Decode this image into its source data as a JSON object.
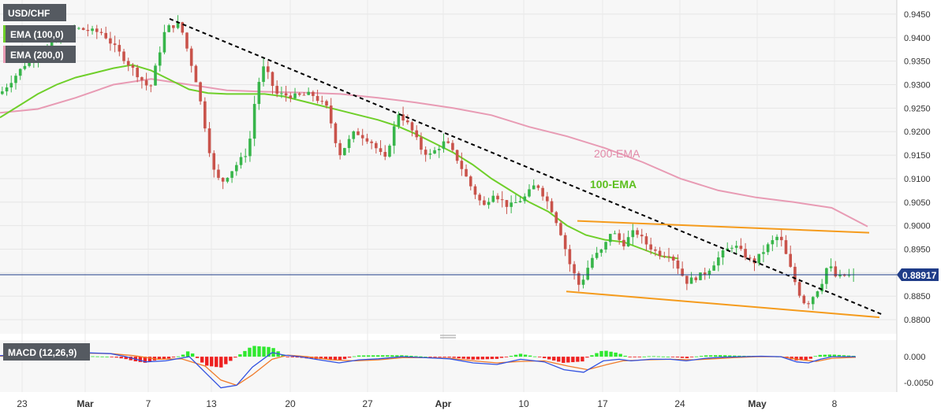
{
  "chart_data": {
    "type": "candlestick",
    "instrument": "USD/CHF",
    "indicators": {
      "ema100": {
        "label": "EMA (100,0)",
        "annotation": "100-EMA",
        "color": "#6fcf2a"
      },
      "ema200": {
        "label": "EMA (200,0)",
        "annotation": "200-EMA",
        "color": "#e89bb4"
      },
      "macd": {
        "label": "MACD (12,26,9)"
      }
    },
    "last_price": "0.88917",
    "price_axis": {
      "ticks": [
        "0.9450",
        "0.9400",
        "0.9350",
        "0.9300",
        "0.9250",
        "0.9200",
        "0.9150",
        "0.9100",
        "0.9050",
        "0.9000",
        "0.8950",
        "0.8900",
        "0.8850",
        "0.8800"
      ],
      "range": [
        0.877,
        0.948
      ]
    },
    "macd_axis": {
      "ticks": [
        "0.000",
        "-0.0050"
      ],
      "range": [
        -0.0068,
        0.0032
      ]
    },
    "date_axis": {
      "ticks": [
        "23",
        "Mar",
        "7",
        "13",
        "20",
        "27",
        "Apr",
        "10",
        "17",
        "24",
        "May",
        "8"
      ],
      "bold": [
        "Mar",
        "Apr",
        "May"
      ]
    },
    "colors": {
      "up": "#37b54a",
      "down": "#c9534b",
      "trendline": "#000000",
      "channel": "#f59b1c",
      "macd_line": "#3050e0",
      "signal_line": "#f07b2a",
      "hist_up": "#2ee82e",
      "hist_down": "#ee2020"
    },
    "ema100": [
      [
        0,
        0.923
      ],
      [
        20,
        0.9255
      ],
      [
        40,
        0.928
      ],
      [
        60,
        0.93
      ],
      [
        80,
        0.9315
      ],
      [
        100,
        0.9325
      ],
      [
        120,
        0.9335
      ],
      [
        140,
        0.9342
      ],
      [
        160,
        0.933
      ],
      [
        180,
        0.931
      ],
      [
        200,
        0.929
      ],
      [
        220,
        0.9282
      ],
      [
        240,
        0.928
      ],
      [
        260,
        0.928
      ],
      [
        280,
        0.928
      ],
      [
        300,
        0.9275
      ],
      [
        320,
        0.9265
      ],
      [
        340,
        0.9255
      ],
      [
        360,
        0.9245
      ],
      [
        380,
        0.9235
      ],
      [
        400,
        0.9225
      ],
      [
        420,
        0.9212
      ],
      [
        440,
        0.9195
      ],
      [
        460,
        0.9175
      ],
      [
        480,
        0.9155
      ],
      [
        500,
        0.913
      ],
      [
        520,
        0.91
      ],
      [
        540,
        0.9075
      ],
      [
        560,
        0.905
      ],
      [
        580,
        0.903
      ],
      [
        600,
        0.9
      ],
      [
        620,
        0.898
      ],
      [
        640,
        0.897
      ],
      [
        660,
        0.8965
      ],
      [
        680,
        0.895
      ],
      [
        700,
        0.8935
      ],
      [
        718,
        0.893
      ]
    ],
    "ema200": [
      [
        0,
        0.924
      ],
      [
        40,
        0.9248
      ],
      [
        80,
        0.9272
      ],
      [
        120,
        0.93
      ],
      [
        160,
        0.9312
      ],
      [
        200,
        0.93
      ],
      [
        240,
        0.9288
      ],
      [
        280,
        0.9285
      ],
      [
        320,
        0.9283
      ],
      [
        360,
        0.928
      ],
      [
        400,
        0.9272
      ],
      [
        440,
        0.9262
      ],
      [
        480,
        0.925
      ],
      [
        520,
        0.9235
      ],
      [
        560,
        0.921
      ],
      [
        600,
        0.919
      ],
      [
        640,
        0.9165
      ],
      [
        680,
        0.9135
      ],
      [
        720,
        0.91
      ],
      [
        760,
        0.9075
      ],
      [
        800,
        0.906
      ],
      [
        840,
        0.905
      ],
      [
        880,
        0.9038
      ],
      [
        918,
        0.8998
      ]
    ],
    "trendline": [
      [
        0,
        0.944
      ],
      [
        918,
        0.881
      ]
    ],
    "channel_upper": [
      [
        0,
        0.901
      ],
      [
        918,
        0.8985
      ]
    ],
    "channel_lower": [
      [
        0,
        0.886
      ],
      [
        918,
        0.8805
      ]
    ],
    "price_path": [
      [
        0,
        0.928
      ],
      [
        35,
        0.935
      ],
      [
        95,
        0.942
      ],
      [
        130,
        0.941
      ],
      [
        160,
        0.935
      ],
      [
        190,
        0.929
      ],
      [
        210,
        0.942
      ],
      [
        228,
        0.943
      ],
      [
        250,
        0.93
      ],
      [
        270,
        0.912
      ],
      [
        280,
        0.909
      ],
      [
        300,
        0.913
      ],
      [
        315,
        0.916
      ],
      [
        325,
        0.929
      ],
      [
        335,
        0.934
      ],
      [
        350,
        0.928
      ],
      [
        375,
        0.9275
      ],
      [
        395,
        0.928
      ],
      [
        415,
        0.925
      ],
      [
        430,
        0.915
      ],
      [
        450,
        0.92
      ],
      [
        470,
        0.918
      ],
      [
        488,
        0.914
      ],
      [
        505,
        0.924
      ],
      [
        520,
        0.921
      ],
      [
        535,
        0.916
      ],
      [
        545,
        0.915
      ],
      [
        565,
        0.918
      ],
      [
        580,
        0.914
      ],
      [
        598,
        0.908
      ],
      [
        613,
        0.904
      ],
      [
        625,
        0.907
      ],
      [
        645,
        0.904
      ],
      [
        665,
        0.906
      ],
      [
        680,
        0.909
      ],
      [
        698,
        0.904
      ],
      [
        710,
        0.899
      ],
      [
        722,
        0.892
      ],
      [
        735,
        0.887
      ],
      [
        750,
        0.893
      ],
      [
        765,
        0.895
      ],
      [
        775,
        0.899
      ],
      [
        790,
        0.896
      ],
      [
        805,
        0.899
      ],
      [
        820,
        0.896
      ],
      [
        835,
        0.894
      ],
      [
        850,
        0.894
      ],
      [
        870,
        0.888
      ],
      [
        895,
        0.89
      ],
      [
        915,
        0.894
      ],
      [
        930,
        0.896
      ],
      [
        955,
        0.892
      ],
      [
        975,
        0.896
      ],
      [
        988,
        0.898
      ],
      [
        1000,
        0.892
      ],
      [
        1012,
        0.886
      ],
      [
        1022,
        0.883
      ],
      [
        1035,
        0.886
      ],
      [
        1042,
        0.888
      ],
      [
        1050,
        0.892
      ],
      [
        1060,
        0.889
      ],
      [
        1075,
        0.8895
      ],
      [
        1085,
        0.8892
      ]
    ],
    "macd_line": [
      [
        0,
        0.0002
      ],
      [
        60,
        0.0006
      ],
      [
        100,
        0.0008
      ],
      [
        140,
        0.0006
      ],
      [
        160,
        0.0
      ],
      [
        185,
        -0.001
      ],
      [
        210,
        -0.0008
      ],
      [
        240,
        0.0
      ],
      [
        260,
        -0.003
      ],
      [
        280,
        -0.006
      ],
      [
        300,
        -0.0055
      ],
      [
        320,
        -0.002
      ],
      [
        345,
        0.0008
      ],
      [
        360,
        0.0003
      ],
      [
        380,
        0.0
      ],
      [
        400,
        -0.0005
      ],
      [
        430,
        -0.0012
      ],
      [
        455,
        -0.0006
      ],
      [
        480,
        -0.0004
      ],
      [
        510,
        0.0
      ],
      [
        540,
        -0.0002
      ],
      [
        570,
        -0.0004
      ],
      [
        600,
        -0.0012
      ],
      [
        630,
        -0.0015
      ],
      [
        660,
        -0.0005
      ],
      [
        690,
        -0.001
      ],
      [
        715,
        -0.0025
      ],
      [
        740,
        -0.003
      ],
      [
        765,
        -0.0008
      ],
      [
        785,
        -0.0005
      ],
      [
        800,
        -0.0008
      ],
      [
        825,
        -0.0005
      ],
      [
        850,
        -0.0005
      ],
      [
        870,
        -0.0008
      ],
      [
        895,
        -0.0003
      ],
      [
        915,
        -0.0001
      ],
      [
        940,
        0.0
      ],
      [
        965,
        0.0001
      ],
      [
        990,
        0.0
      ],
      [
        1010,
        -0.001
      ],
      [
        1025,
        -0.0012
      ],
      [
        1040,
        -0.0005
      ],
      [
        1055,
        0.0
      ],
      [
        1085,
        0.0
      ]
    ],
    "signal_line": [
      [
        0,
        0.0001
      ],
      [
        60,
        0.0004
      ],
      [
        100,
        0.0007
      ],
      [
        140,
        0.0006
      ],
      [
        170,
        0.0002
      ],
      [
        200,
        -0.0005
      ],
      [
        230,
        -0.0004
      ],
      [
        260,
        -0.0018
      ],
      [
        280,
        -0.0045
      ],
      [
        300,
        -0.0055
      ],
      [
        320,
        -0.0035
      ],
      [
        345,
        -0.0005
      ],
      [
        365,
        0.0003
      ],
      [
        390,
        0.0
      ],
      [
        420,
        -0.0006
      ],
      [
        450,
        -0.0008
      ],
      [
        480,
        -0.0006
      ],
      [
        510,
        -0.0002
      ],
      [
        540,
        -0.0002
      ],
      [
        570,
        -0.0003
      ],
      [
        600,
        -0.0008
      ],
      [
        630,
        -0.0012
      ],
      [
        660,
        -0.0009
      ],
      [
        690,
        -0.0008
      ],
      [
        720,
        -0.0018
      ],
      [
        745,
        -0.0025
      ],
      [
        770,
        -0.0015
      ],
      [
        790,
        -0.0008
      ],
      [
        820,
        -0.0006
      ],
      [
        850,
        -0.0005
      ],
      [
        880,
        -0.0006
      ],
      [
        905,
        -0.0004
      ],
      [
        930,
        -0.0002
      ],
      [
        960,
        0.0
      ],
      [
        990,
        0.0
      ],
      [
        1015,
        -0.0006
      ],
      [
        1035,
        -0.0009
      ],
      [
        1055,
        -0.0003
      ],
      [
        1085,
        -0.0001
      ]
    ]
  }
}
